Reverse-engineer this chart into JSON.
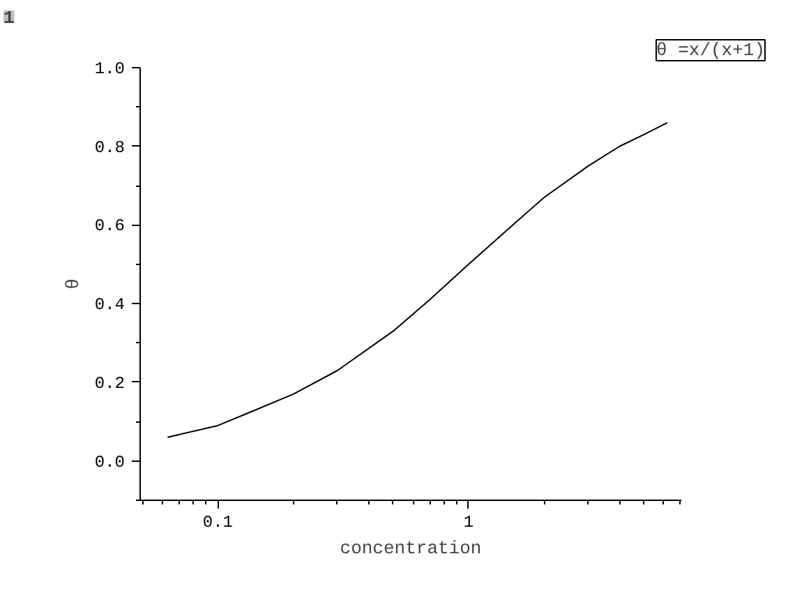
{
  "chart_data": {
    "type": "line",
    "xlabel": "concentration",
    "ylabel": "θ",
    "log": "x",
    "grid": false,
    "marker": "none",
    "line_style": "solid",
    "annotations": [
      "1",
      "θ =x/(x+1)"
    ],
    "xlim": [
      0.049,
      7.05
    ],
    "xticks": [
      0.1,
      1
    ],
    "ylim": [
      -0.1,
      1.0
    ],
    "yticks": [
      {
        "value": 0,
        "label": "0.0"
      },
      0.2,
      0.4,
      0.6,
      0.8,
      {
        "value": 1,
        "label": "1.0"
      }
    ],
    "series": [
      {
        "color": "#000000",
        "x": [
          0.063,
          0.1,
          0.13,
          0.2,
          0.3,
          0.5,
          0.7,
          1,
          1.5,
          2,
          3,
          4,
          5,
          6.2
        ],
        "values": [
          0.06,
          0.09,
          0.12,
          0.17,
          0.23,
          0.33,
          0.41,
          0.5,
          0.6,
          0.67,
          0.75,
          0.8,
          0.83,
          0.86
        ]
      }
    ]
  }
}
